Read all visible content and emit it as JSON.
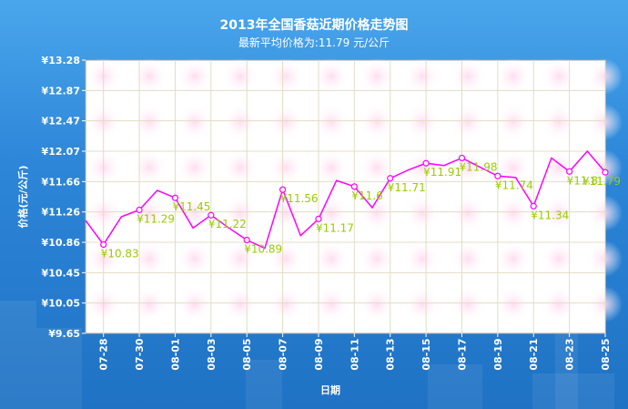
{
  "chart_data": {
    "type": "line",
    "title": "2013年全国香菇近期价格走势图",
    "subtitle": "最新平均价格为:11.79 元/公斤",
    "xlabel": "日期",
    "ylabel": "价格(元/公斤)",
    "ylim": [
      9.65,
      13.28
    ],
    "yticks": [
      "¥13.28",
      "¥12.87",
      "¥12.47",
      "¥12.07",
      "¥11.66",
      "¥11.26",
      "¥10.86",
      "¥10.45",
      "¥10.05",
      "¥9.65"
    ],
    "xticks": [
      "07-28",
      "07-30",
      "08-01",
      "08-03",
      "08-05",
      "08-07",
      "08-09",
      "08-11",
      "08-13",
      "08-15",
      "08-17",
      "08-19",
      "08-21",
      "08-23",
      "08-25"
    ],
    "grid": true,
    "x": [
      "07-27",
      "07-28",
      "07-29",
      "07-30",
      "07-31",
      "08-01",
      "08-02",
      "08-03",
      "08-04",
      "08-05",
      "08-06",
      "08-07",
      "08-08",
      "08-09",
      "08-10",
      "08-11",
      "08-12",
      "08-13",
      "08-14",
      "08-15",
      "08-16",
      "08-17",
      "08-18",
      "08-19",
      "08-20",
      "08-21",
      "08-22",
      "08-23",
      "08-24",
      "08-25"
    ],
    "series": [
      {
        "color": "#ff00ff",
        "values": [
          11.15,
          10.83,
          11.2,
          11.29,
          11.55,
          11.45,
          11.05,
          11.22,
          11.05,
          10.89,
          10.78,
          11.56,
          10.95,
          11.17,
          11.68,
          11.6,
          11.32,
          11.71,
          11.82,
          11.91,
          11.88,
          11.98,
          11.86,
          11.74,
          11.72,
          11.34,
          11.98,
          11.8,
          12.07,
          11.79
        ]
      }
    ],
    "data_labels": [
      {
        "x": "07-28",
        "text": "¥10.83"
      },
      {
        "x": "07-30",
        "text": "¥11.29"
      },
      {
        "x": "08-01",
        "text": "¥11.45"
      },
      {
        "x": "08-03",
        "text": "¥11.22"
      },
      {
        "x": "08-05",
        "text": "¥10.89"
      },
      {
        "x": "08-07",
        "text": "¥11.56"
      },
      {
        "x": "08-09",
        "text": "¥11.17"
      },
      {
        "x": "08-11",
        "text": "¥11.6"
      },
      {
        "x": "08-13",
        "text": "¥11.71"
      },
      {
        "x": "08-15",
        "text": "¥11.91"
      },
      {
        "x": "08-17",
        "text": "¥11.98"
      },
      {
        "x": "08-19",
        "text": "¥11.74"
      },
      {
        "x": "08-21",
        "text": "¥11.34"
      },
      {
        "x": "08-23",
        "text": "¥11.8"
      },
      {
        "x": "08-25",
        "text": "¥11.79"
      }
    ]
  }
}
